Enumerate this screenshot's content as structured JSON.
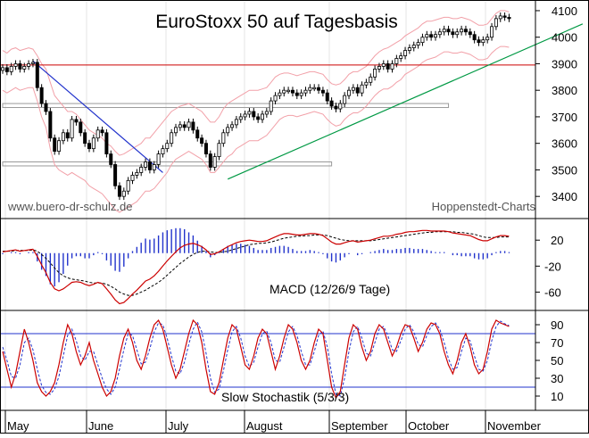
{
  "chart_data": {
    "type": "candlestick",
    "title": "EuroStoxx 50 auf Tagesbasis",
    "watermark_left": "www.buero-dr-schulz.de",
    "watermark_right": "Hoppenstedt-Charts",
    "months": [
      "May",
      "June",
      "July",
      "August",
      "September",
      "October",
      "November"
    ],
    "price_panel": {
      "ylim": [
        3330,
        4120
      ],
      "yticks": [
        3400,
        3500,
        3600,
        3700,
        3800,
        3900,
        4000,
        4100
      ],
      "horizontal_line": {
        "value": 3895,
        "color": "#cc0000"
      },
      "support_zones": [
        {
          "from_day": 0,
          "to_day": 103,
          "low": 3735,
          "high": 3750
        },
        {
          "from_day": 0,
          "to_day": 76,
          "low": 3515,
          "high": 3530
        }
      ],
      "downtrend_line": {
        "from_day": 7,
        "from_value": 3910,
        "to_day": 37,
        "to_value": 3490,
        "color": "#2233cc"
      },
      "uptrend_line": {
        "from_day": 52,
        "from_value": 3465,
        "to_day": 134,
        "to_value": 4050,
        "color": "#009944"
      },
      "close": [
        3885,
        3870,
        3890,
        3900,
        3880,
        3890,
        3900,
        3905,
        3810,
        3750,
        3720,
        3620,
        3570,
        3610,
        3640,
        3620,
        3690,
        3680,
        3640,
        3600,
        3580,
        3620,
        3650,
        3640,
        3560,
        3520,
        3440,
        3400,
        3420,
        3460,
        3480,
        3490,
        3510,
        3530,
        3500,
        3520,
        3560,
        3580,
        3600,
        3640,
        3660,
        3670,
        3660,
        3680,
        3650,
        3620,
        3600,
        3560,
        3510,
        3550,
        3600,
        3640,
        3660,
        3670,
        3690,
        3700,
        3710,
        3720,
        3700,
        3690,
        3710,
        3720,
        3760,
        3780,
        3790,
        3800,
        3800,
        3790,
        3780,
        3790,
        3800,
        3810,
        3810,
        3800,
        3790,
        3760,
        3740,
        3730,
        3750,
        3780,
        3800,
        3810,
        3790,
        3820,
        3830,
        3850,
        3880,
        3890,
        3900,
        3880,
        3900,
        3920,
        3930,
        3950,
        3960,
        3970,
        3980,
        4000,
        4010,
        4000,
        4010,
        4020,
        4030,
        4020,
        4010,
        4020,
        4030,
        4020,
        4010,
        3990,
        3980,
        3990,
        4000,
        4040,
        4070,
        4080,
        4075,
        4070
      ],
      "high_offset": 22,
      "low_offset": 22,
      "envelope_upper": [
        3950,
        3940,
        3955,
        3960,
        3950,
        3955,
        3960,
        3955,
        3930,
        3900,
        3880,
        3830,
        3780,
        3760,
        3740,
        3720,
        3720,
        3710,
        3690,
        3670,
        3650,
        3640,
        3630,
        3620,
        3600,
        3590,
        3570,
        3555,
        3560,
        3570,
        3580,
        3590,
        3600,
        3620,
        3620,
        3640,
        3660,
        3680,
        3700,
        3720,
        3730,
        3740,
        3745,
        3750,
        3740,
        3730,
        3720,
        3700,
        3680,
        3680,
        3700,
        3730,
        3750,
        3760,
        3770,
        3780,
        3790,
        3800,
        3800,
        3800,
        3805,
        3810,
        3830,
        3850,
        3860,
        3865,
        3865,
        3860,
        3855,
        3860,
        3865,
        3870,
        3870,
        3865,
        3860,
        3840,
        3825,
        3820,
        3825,
        3840,
        3860,
        3870,
        3870,
        3880,
        3890,
        3910,
        3930,
        3945,
        3955,
        3960,
        3970,
        3980,
        3990,
        4005,
        4015,
        4025,
        4035,
        4050,
        4060,
        4060,
        4065,
        4070,
        4075,
        4075,
        4070,
        4070,
        4075,
        4070,
        4065,
        4055,
        4045,
        4045,
        4050,
        4070,
        4090,
        4100,
        4100,
        4095
      ],
      "envelope_lower": [
        3800,
        3790,
        3800,
        3810,
        3800,
        3805,
        3810,
        3810,
        3760,
        3700,
        3660,
        3580,
        3520,
        3500,
        3490,
        3480,
        3490,
        3480,
        3470,
        3460,
        3440,
        3430,
        3420,
        3410,
        3390,
        3370,
        3350,
        3340,
        3350,
        3360,
        3370,
        3380,
        3400,
        3420,
        3420,
        3430,
        3450,
        3470,
        3490,
        3520,
        3540,
        3550,
        3560,
        3570,
        3560,
        3550,
        3540,
        3520,
        3490,
        3490,
        3510,
        3530,
        3550,
        3560,
        3580,
        3590,
        3600,
        3610,
        3610,
        3610,
        3620,
        3630,
        3650,
        3670,
        3690,
        3700,
        3705,
        3705,
        3700,
        3705,
        3710,
        3715,
        3720,
        3715,
        3710,
        3690,
        3675,
        3665,
        3670,
        3690,
        3705,
        3715,
        3715,
        3725,
        3740,
        3760,
        3780,
        3795,
        3805,
        3805,
        3815,
        3830,
        3840,
        3860,
        3870,
        3880,
        3890,
        3905,
        3915,
        3920,
        3925,
        3935,
        3945,
        3945,
        3940,
        3940,
        3945,
        3940,
        3935,
        3925,
        3915,
        3915,
        3920,
        3940,
        3955,
        3965,
        3965,
        3962
      ]
    },
    "macd_panel": {
      "name": "MACD (12/26/9 Tage)",
      "ylim": [
        -80,
        45
      ],
      "yticks": [
        20,
        -20,
        -60
      ],
      "macd": [
        2,
        3,
        4,
        5,
        3,
        4,
        5,
        6,
        -5,
        -18,
        -30,
        -45,
        -55,
        -58,
        -55,
        -50,
        -45,
        -44,
        -45,
        -48,
        -50,
        -48,
        -45,
        -47,
        -55,
        -63,
        -72,
        -78,
        -76,
        -70,
        -63,
        -57,
        -50,
        -43,
        -40,
        -35,
        -28,
        -20,
        -12,
        -5,
        2,
        8,
        12,
        14,
        15,
        13,
        10,
        5,
        -2,
        -1,
        2,
        6,
        10,
        13,
        16,
        18,
        19,
        20,
        19,
        18,
        18,
        19,
        22,
        25,
        28,
        30,
        30,
        29,
        28,
        28,
        29,
        30,
        30,
        29,
        27,
        22,
        17,
        14,
        14,
        16,
        18,
        19,
        17,
        18,
        19,
        20,
        22,
        24,
        26,
        26,
        27,
        29,
        30,
        32,
        33,
        33,
        34,
        35,
        35,
        34,
        34,
        34,
        34,
        33,
        31,
        30,
        29,
        28,
        27,
        24,
        21,
        19,
        19,
        22,
        25,
        27,
        27,
        26
      ],
      "signal": [
        3,
        3,
        3,
        4,
        4,
        4,
        4,
        5,
        3,
        -2,
        -8,
        -15,
        -23,
        -30,
        -35,
        -38,
        -40,
        -41,
        -42,
        -43,
        -45,
        -46,
        -46,
        -46,
        -48,
        -51,
        -55,
        -60,
        -63,
        -65,
        -65,
        -63,
        -60,
        -57,
        -53,
        -49,
        -45,
        -40,
        -34,
        -28,
        -22,
        -16,
        -11,
        -6,
        -2,
        1,
        3,
        3,
        2,
        1,
        1,
        2,
        3,
        5,
        7,
        9,
        11,
        13,
        14,
        15,
        15,
        16,
        17,
        19,
        21,
        23,
        24,
        25,
        26,
        26,
        27,
        27,
        28,
        28,
        28,
        27,
        25,
        23,
        21,
        20,
        19,
        19,
        19,
        19,
        19,
        19,
        20,
        21,
        22,
        23,
        24,
        25,
        26,
        27,
        28,
        29,
        30,
        31,
        32,
        32,
        33,
        33,
        33,
        33,
        33,
        32,
        32,
        31,
        30,
        29,
        27,
        25,
        24,
        24,
        24,
        25,
        25,
        25
      ]
    },
    "stochastic_panel": {
      "name": "Slow Stochastik (5/3/3)",
      "ylim": [
        0,
        100
      ],
      "yticks": [
        90,
        70,
        50,
        30,
        10
      ],
      "upper_level": 80,
      "lower_level": 20,
      "k": [
        60,
        40,
        20,
        35,
        60,
        85,
        70,
        50,
        25,
        15,
        10,
        15,
        25,
        45,
        70,
        90,
        80,
        60,
        45,
        55,
        70,
        50,
        35,
        20,
        10,
        15,
        30,
        55,
        75,
        85,
        70,
        50,
        40,
        55,
        75,
        90,
        95,
        85,
        65,
        45,
        30,
        40,
        60,
        80,
        95,
        90,
        70,
        40,
        15,
        12,
        25,
        50,
        75,
        90,
        85,
        65,
        45,
        40,
        55,
        75,
        85,
        80,
        60,
        40,
        55,
        75,
        90,
        85,
        70,
        50,
        40,
        50,
        70,
        85,
        80,
        50,
        20,
        8,
        15,
        45,
        75,
        90,
        85,
        65,
        50,
        60,
        80,
        90,
        85,
        70,
        55,
        65,
        80,
        90,
        88,
        75,
        60,
        70,
        85,
        92,
        90,
        80,
        60,
        45,
        35,
        50,
        70,
        80,
        65,
        45,
        35,
        40,
        60,
        85,
        95,
        92,
        90,
        88
      ],
      "d": [
        65,
        50,
        32,
        30,
        45,
        70,
        75,
        62,
        40,
        22,
        14,
        12,
        18,
        32,
        55,
        78,
        85,
        72,
        55,
        50,
        60,
        60,
        45,
        30,
        18,
        12,
        20,
        40,
        62,
        80,
        78,
        62,
        46,
        48,
        63,
        82,
        92,
        90,
        75,
        55,
        38,
        35,
        48,
        68,
        85,
        93,
        82,
        58,
        30,
        14,
        18,
        38,
        62,
        82,
        88,
        75,
        55,
        43,
        48,
        65,
        80,
        83,
        70,
        50,
        48,
        65,
        82,
        88,
        78,
        60,
        45,
        45,
        60,
        78,
        83,
        65,
        35,
        12,
        10,
        30,
        60,
        82,
        88,
        75,
        58,
        55,
        70,
        85,
        88,
        78,
        62,
        60,
        72,
        85,
        90,
        82,
        68,
        65,
        78,
        88,
        92,
        85,
        70,
        52,
        40,
        42,
        60,
        75,
        72,
        55,
        40,
        38,
        50,
        72,
        88,
        94,
        91,
        89
      ]
    }
  }
}
